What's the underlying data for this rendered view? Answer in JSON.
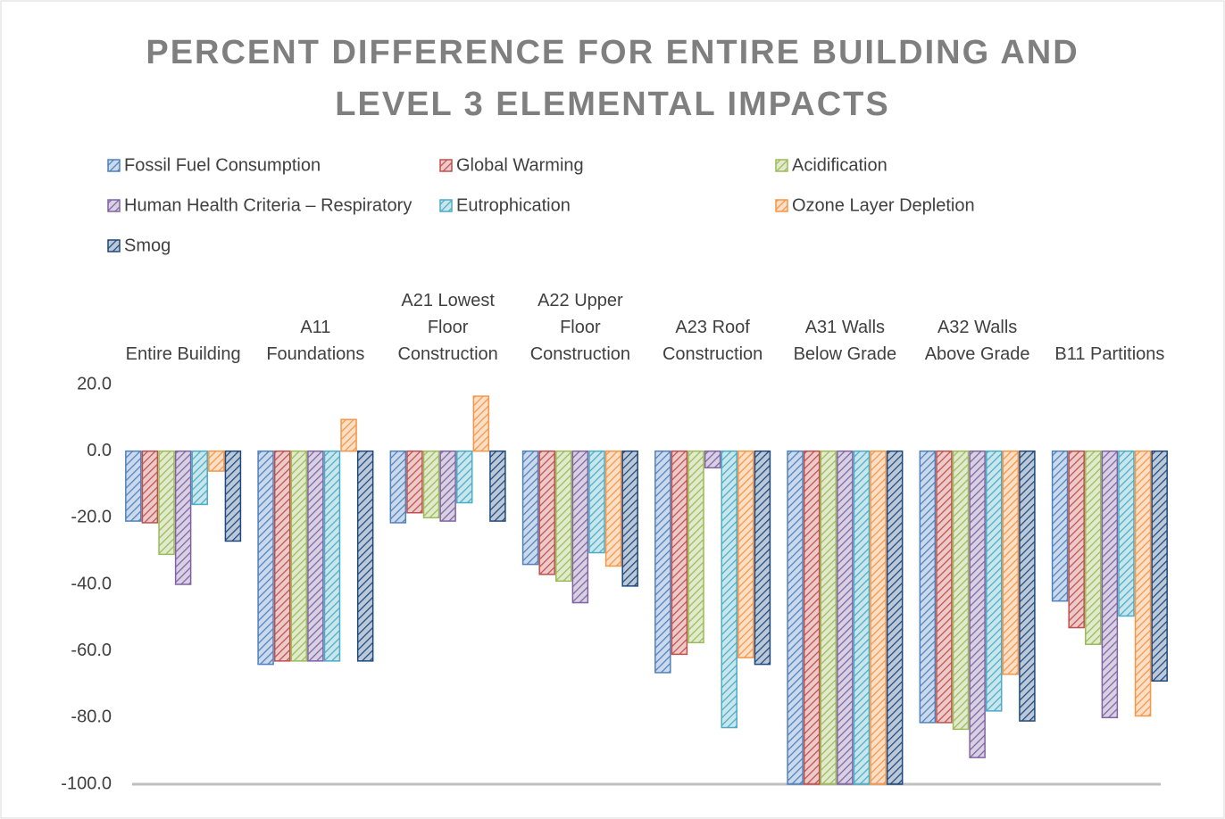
{
  "chart_data": {
    "type": "bar",
    "title": "PERCENT DIFFERENCE FOR ENTIRE BUILDING AND LEVEL 3 ELEMENTAL IMPACTS",
    "categories": [
      "Entire Building",
      "A11 Foundations",
      "A21 Lowest Floor Construction",
      "A22 Upper Floor Construction",
      "A23 Roof Construction",
      "A31 Walls Below Grade",
      "A32 Walls Above Grade",
      "B11 Partitions"
    ],
    "series": [
      {
        "name": "Fossil Fuel Consumption",
        "color": "#4f81bd",
        "values": [
          -21,
          -64,
          -21.5,
          -34,
          -66.5,
          -100,
          -81.5,
          -45
        ]
      },
      {
        "name": "Global Warming",
        "color": "#c0504d",
        "values": [
          -21.5,
          -63,
          -18.5,
          -37,
          -61,
          -100,
          -81.5,
          -53
        ]
      },
      {
        "name": "Acidification",
        "color": "#9bbb59",
        "values": [
          -31,
          -63,
          -20,
          -39,
          -57.5,
          -100,
          -83.5,
          -58
        ]
      },
      {
        "name": "Human Health Criteria – Respiratory",
        "color": "#8064a2",
        "values": [
          -40,
          -63,
          -21,
          -45.5,
          -5,
          -100,
          -92,
          -80
        ]
      },
      {
        "name": "Eutrophication",
        "color": "#4bacc6",
        "values": [
          -16,
          -63,
          -15.5,
          -30.5,
          -83,
          -100,
          -78,
          -49.5
        ]
      },
      {
        "name": "Ozone Layer Depletion",
        "color": "#f79646",
        "values": [
          -6,
          9.5,
          16.5,
          -34.5,
          -62,
          -100,
          -67,
          -79.5
        ]
      },
      {
        "name": "Smog",
        "color": "#1f497d",
        "values": [
          -27,
          -63,
          -21,
          -40.5,
          -64,
          -100,
          -81,
          -69
        ]
      }
    ],
    "ylim": [
      -100,
      20
    ],
    "yticks": [
      {
        "value": -100,
        "label": "-100.0"
      },
      {
        "value": -80,
        "label": "-80.0"
      },
      {
        "value": -60,
        "label": "-60.0"
      },
      {
        "value": -40,
        "label": "-40.0"
      },
      {
        "value": -20,
        "label": "-20.0"
      },
      {
        "value": 0,
        "label": "0.0"
      },
      {
        "value": 20,
        "label": "20.0"
      }
    ],
    "grid": false,
    "legend": "top"
  }
}
